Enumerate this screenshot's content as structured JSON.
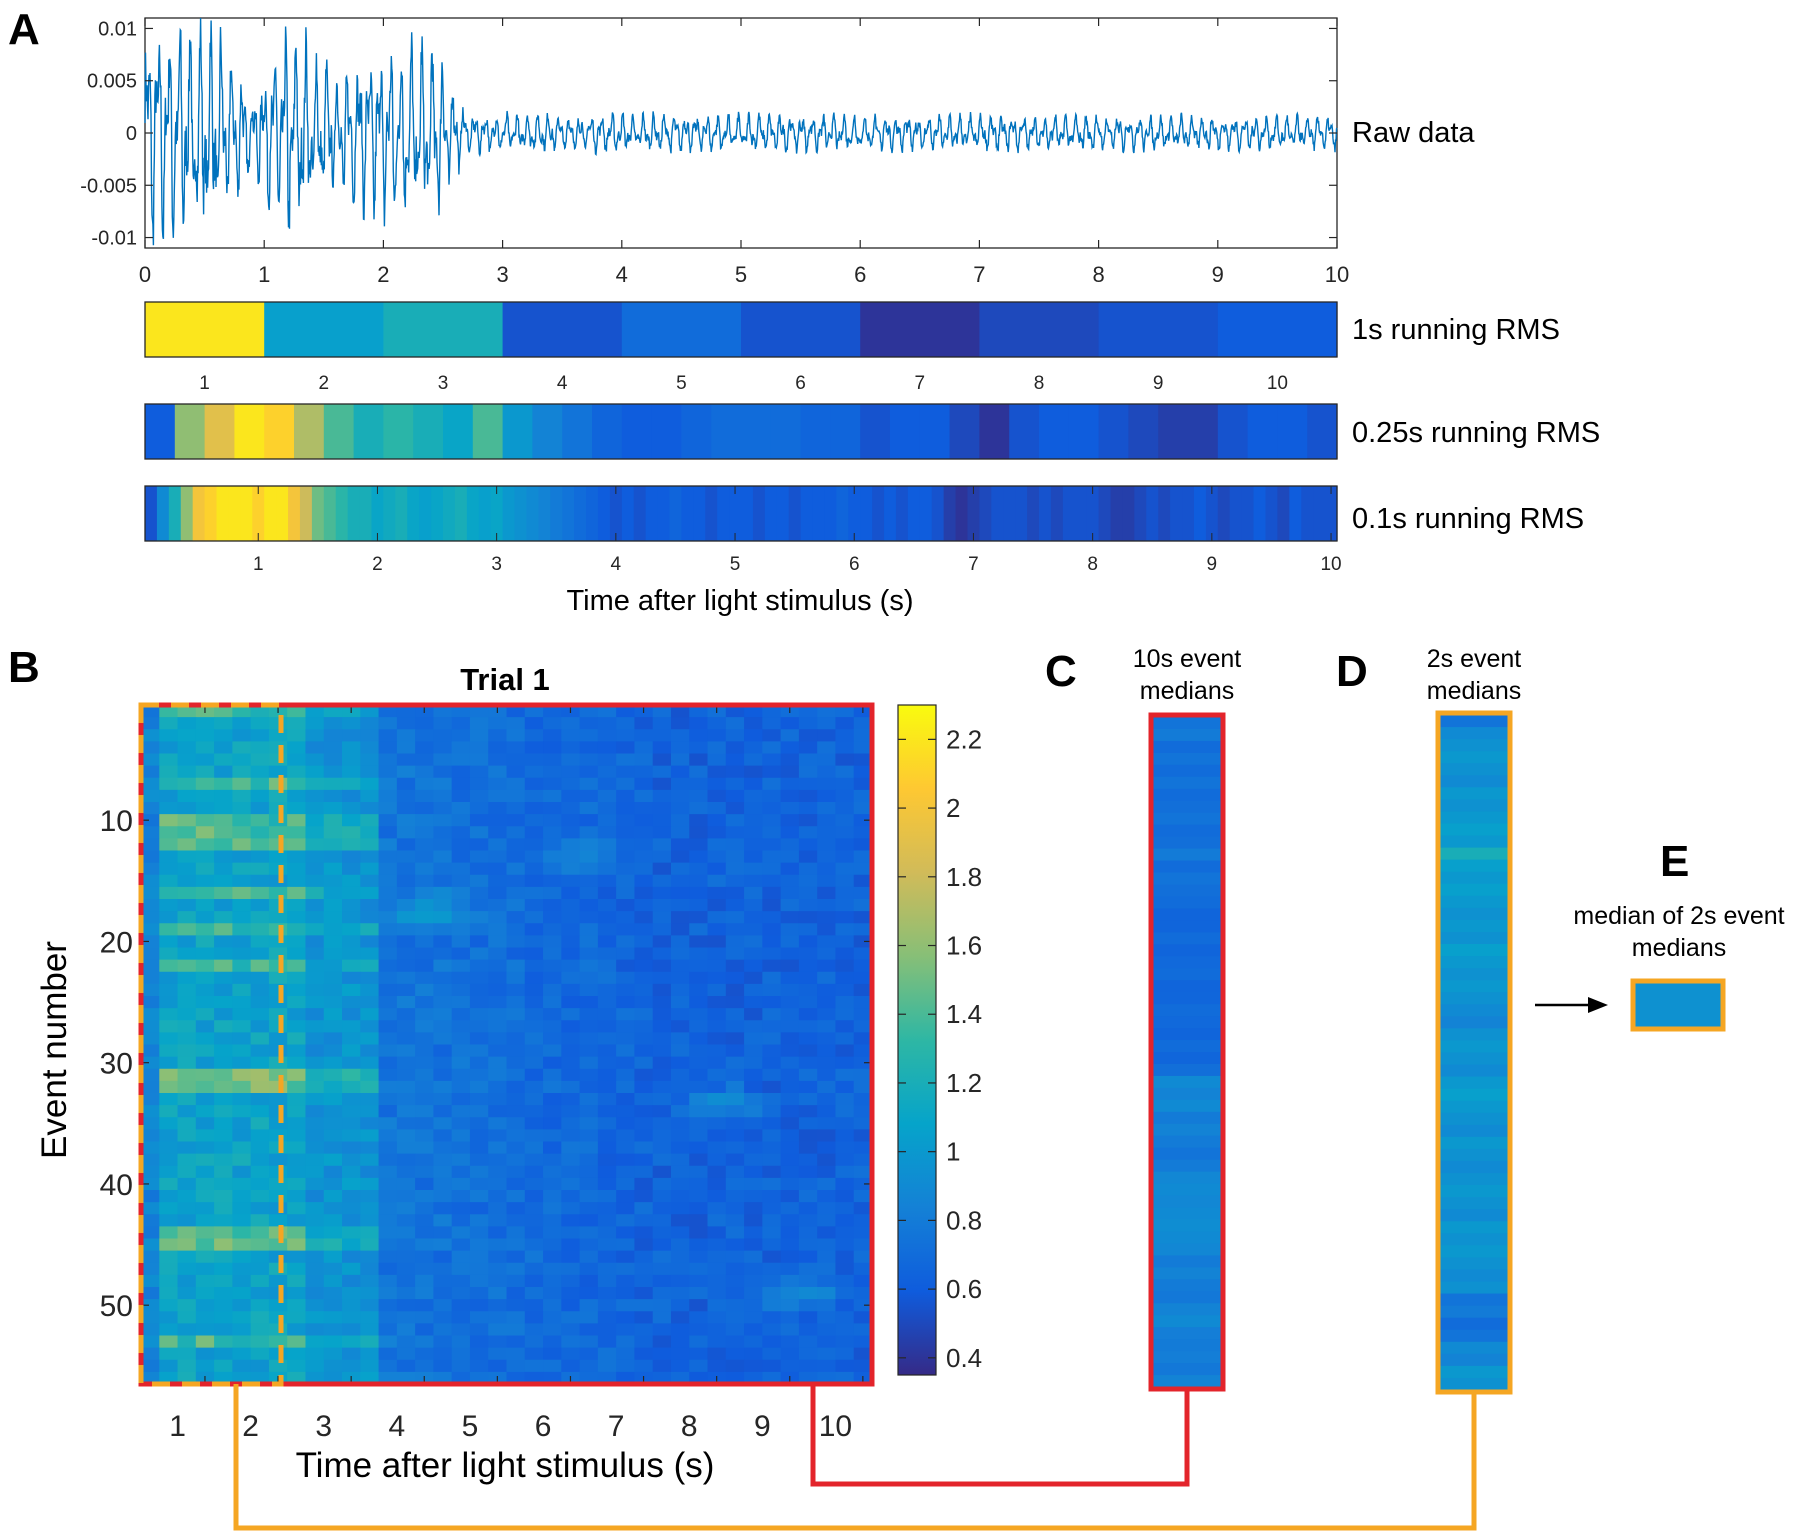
{
  "panels": {
    "A": "A",
    "B": "B",
    "C": "C",
    "D": "D",
    "E": "E"
  },
  "colors": {
    "raw_line": "#0072bd",
    "red_box": "#e3242b",
    "orange_box": "#f5a623",
    "axis": "#262626",
    "parula": [
      "#352a87",
      "#0f5cdd",
      "#1481d6",
      "#06a4ca",
      "#2eb7a4",
      "#87bf77",
      "#d1bb59",
      "#fec832",
      "#f9fb0e"
    ]
  },
  "chart_data": [
    {
      "id": "raw-data",
      "type": "line",
      "label": "Raw data",
      "xlim": [
        0,
        10
      ],
      "ylim": [
        -0.011,
        0.011
      ],
      "xticks": [
        "0",
        "1",
        "2",
        "3",
        "4",
        "5",
        "6",
        "7",
        "8",
        "9",
        "10"
      ],
      "yticks": [
        "0.01",
        "0.005",
        "0",
        "-0.005",
        "-0.01"
      ],
      "ytick_values": [
        0.01,
        0.005,
        0,
        -0.005,
        -0.01
      ],
      "envelope": [
        {
          "t": 0.0,
          "amp": 0.011
        },
        {
          "t": 0.6,
          "amp": 0.011
        },
        {
          "t": 0.9,
          "amp": 0.004
        },
        {
          "t": 1.2,
          "amp": 0.011
        },
        {
          "t": 1.6,
          "amp": 0.006
        },
        {
          "t": 2.0,
          "amp": 0.009
        },
        {
          "t": 2.45,
          "amp": 0.009
        },
        {
          "t": 2.7,
          "amp": 0.002
        },
        {
          "t": 10.0,
          "amp": 0.0017
        }
      ]
    },
    {
      "id": "rms-1s",
      "type": "heatmap",
      "label": "1s running RMS",
      "xticks": [
        "1",
        "2",
        "3",
        "4",
        "5",
        "6",
        "7",
        "8",
        "9",
        "10"
      ],
      "values": [
        2.2,
        1.05,
        1.2,
        0.55,
        0.7,
        0.55,
        0.4,
        0.5,
        0.55,
        0.6
      ],
      "clim": [
        0.35,
        2.3
      ]
    },
    {
      "id": "rms-025s",
      "type": "heatmap",
      "label": "0.25s running RMS",
      "values": [
        0.6,
        1.6,
        1.9,
        2.2,
        2.1,
        1.7,
        1.4,
        1.2,
        1.3,
        1.2,
        1.1,
        1.4,
        1.0,
        0.85,
        0.75,
        0.65,
        0.6,
        0.6,
        0.65,
        0.7,
        0.7,
        0.7,
        0.65,
        0.65,
        0.55,
        0.6,
        0.6,
        0.5,
        0.4,
        0.55,
        0.6,
        0.6,
        0.55,
        0.5,
        0.45,
        0.45,
        0.55,
        0.6,
        0.6,
        0.55
      ],
      "clim": [
        0.35,
        2.3
      ]
    },
    {
      "id": "rms-01s",
      "type": "heatmap",
      "label": "0.1s running RMS",
      "xticks": [
        "1",
        "2",
        "3",
        "4",
        "5",
        "6",
        "7",
        "8",
        "9",
        "10"
      ],
      "values": [
        0.55,
        0.9,
        1.2,
        1.6,
        2.0,
        2.1,
        2.2,
        2.2,
        2.2,
        2.1,
        2.2,
        2.2,
        2.0,
        1.8,
        1.5,
        1.4,
        1.3,
        1.2,
        1.2,
        1.1,
        1.15,
        1.2,
        1.1,
        1.05,
        1.1,
        1.15,
        1.2,
        1.1,
        1.05,
        1.1,
        1.0,
        0.95,
        0.9,
        0.85,
        0.8,
        0.75,
        0.7,
        0.65,
        0.6,
        0.55,
        0.6,
        0.55,
        0.6,
        0.6,
        0.65,
        0.6,
        0.6,
        0.55,
        0.6,
        0.6,
        0.6,
        0.55,
        0.6,
        0.6,
        0.55,
        0.6,
        0.6,
        0.6,
        0.65,
        0.6,
        0.6,
        0.55,
        0.6,
        0.55,
        0.6,
        0.6,
        0.55,
        0.45,
        0.4,
        0.45,
        0.5,
        0.55,
        0.55,
        0.55,
        0.5,
        0.55,
        0.5,
        0.55,
        0.55,
        0.55,
        0.5,
        0.45,
        0.45,
        0.5,
        0.55,
        0.5,
        0.55,
        0.55,
        0.6,
        0.55,
        0.5,
        0.55,
        0.55,
        0.6,
        0.55,
        0.5,
        0.6,
        0.55,
        0.55,
        0.55
      ],
      "clim": [
        0.35,
        2.3
      ],
      "xlabel": "Time after light stimulus (s)"
    },
    {
      "id": "trial-1",
      "type": "heatmap",
      "title": "Trial 1",
      "xlabel": "Time after light stimulus (s)",
      "ylabel": "Event number",
      "xticks": [
        "1",
        "2",
        "3",
        "4",
        "5",
        "6",
        "7",
        "8",
        "9",
        "10"
      ],
      "yticks": [
        "10",
        "20",
        "30",
        "40",
        "50"
      ],
      "ytick_values": [
        10,
        20,
        30,
        40,
        50
      ],
      "n_events": 56,
      "n_bins": 40,
      "clim": [
        0.35,
        2.3
      ],
      "colorbar_ticks": [
        "2.2",
        "2",
        "1.8",
        "1.6",
        "1.4",
        "1.2",
        "1",
        "0.8",
        "0.6",
        "0.4"
      ],
      "colorbar_values": [
        2.2,
        2.0,
        1.8,
        1.6,
        1.4,
        1.2,
        1.0,
        0.8,
        0.6,
        0.4
      ],
      "hot_rows": [
        [
          1,
          1.25
        ],
        [
          7,
          1.3
        ],
        [
          10,
          1.35
        ],
        [
          11,
          1.4
        ],
        [
          12,
          1.45
        ],
        [
          16,
          1.35
        ],
        [
          19,
          1.3
        ],
        [
          22,
          1.25
        ],
        [
          31,
          1.55
        ],
        [
          32,
          1.5
        ],
        [
          44,
          1.4
        ],
        [
          45,
          1.4
        ],
        [
          53,
          1.3
        ]
      ],
      "blobs": [
        [
          4,
          17.5,
          0.35
        ],
        [
          8,
          33.5,
          0.3
        ],
        [
          6,
          13,
          0.25
        ],
        [
          9,
          49,
          0.35
        ]
      ]
    },
    {
      "id": "c-medians",
      "type": "heatmap",
      "title": "10s event medians",
      "values": [
        0.75,
        0.8,
        0.7,
        0.75,
        0.7,
        0.75,
        0.7,
        0.72,
        0.75,
        0.7,
        0.72,
        0.8,
        0.7,
        0.75,
        0.72,
        0.7,
        0.65,
        0.65,
        0.7,
        0.65,
        0.68,
        0.7,
        0.65,
        0.66,
        0.7,
        0.68,
        0.65,
        0.7,
        0.66,
        0.72,
        0.9,
        0.85,
        0.9,
        0.8,
        0.85,
        0.8,
        0.75,
        0.8,
        0.88,
        0.9,
        0.88,
        0.9,
        0.92,
        0.9,
        0.88,
        0.8,
        0.85,
        0.8,
        0.78,
        0.85,
        0.9,
        0.82,
        0.8,
        0.82,
        0.78,
        0.85
      ],
      "clim": [
        0.35,
        2.3
      ]
    },
    {
      "id": "d-medians",
      "type": "heatmap",
      "title": "2s event medians",
      "values": [
        0.75,
        0.9,
        0.95,
        1.0,
        0.95,
        0.9,
        1.0,
        0.95,
        1.0,
        1.05,
        1.0,
        1.2,
        1.05,
        1.0,
        1.05,
        1.0,
        0.95,
        1.0,
        0.95,
        1.05,
        1.0,
        0.95,
        1.0,
        0.95,
        0.9,
        0.85,
        0.95,
        1.0,
        0.95,
        0.9,
        1.0,
        1.05,
        1.0,
        0.95,
        0.9,
        1.0,
        0.95,
        0.9,
        0.95,
        1.0,
        0.95,
        0.9,
        1.0,
        0.95,
        1.0,
        0.95,
        0.9,
        0.95,
        0.75,
        0.8,
        0.7,
        0.75,
        0.9,
        0.85,
        1.0,
        0.95
      ],
      "clim": [
        0.35,
        2.3
      ]
    },
    {
      "id": "e-median",
      "type": "heatmap",
      "title": "median of 2s event medians",
      "values": [
        0.95
      ],
      "clim": [
        0.35,
        2.3
      ]
    }
  ]
}
